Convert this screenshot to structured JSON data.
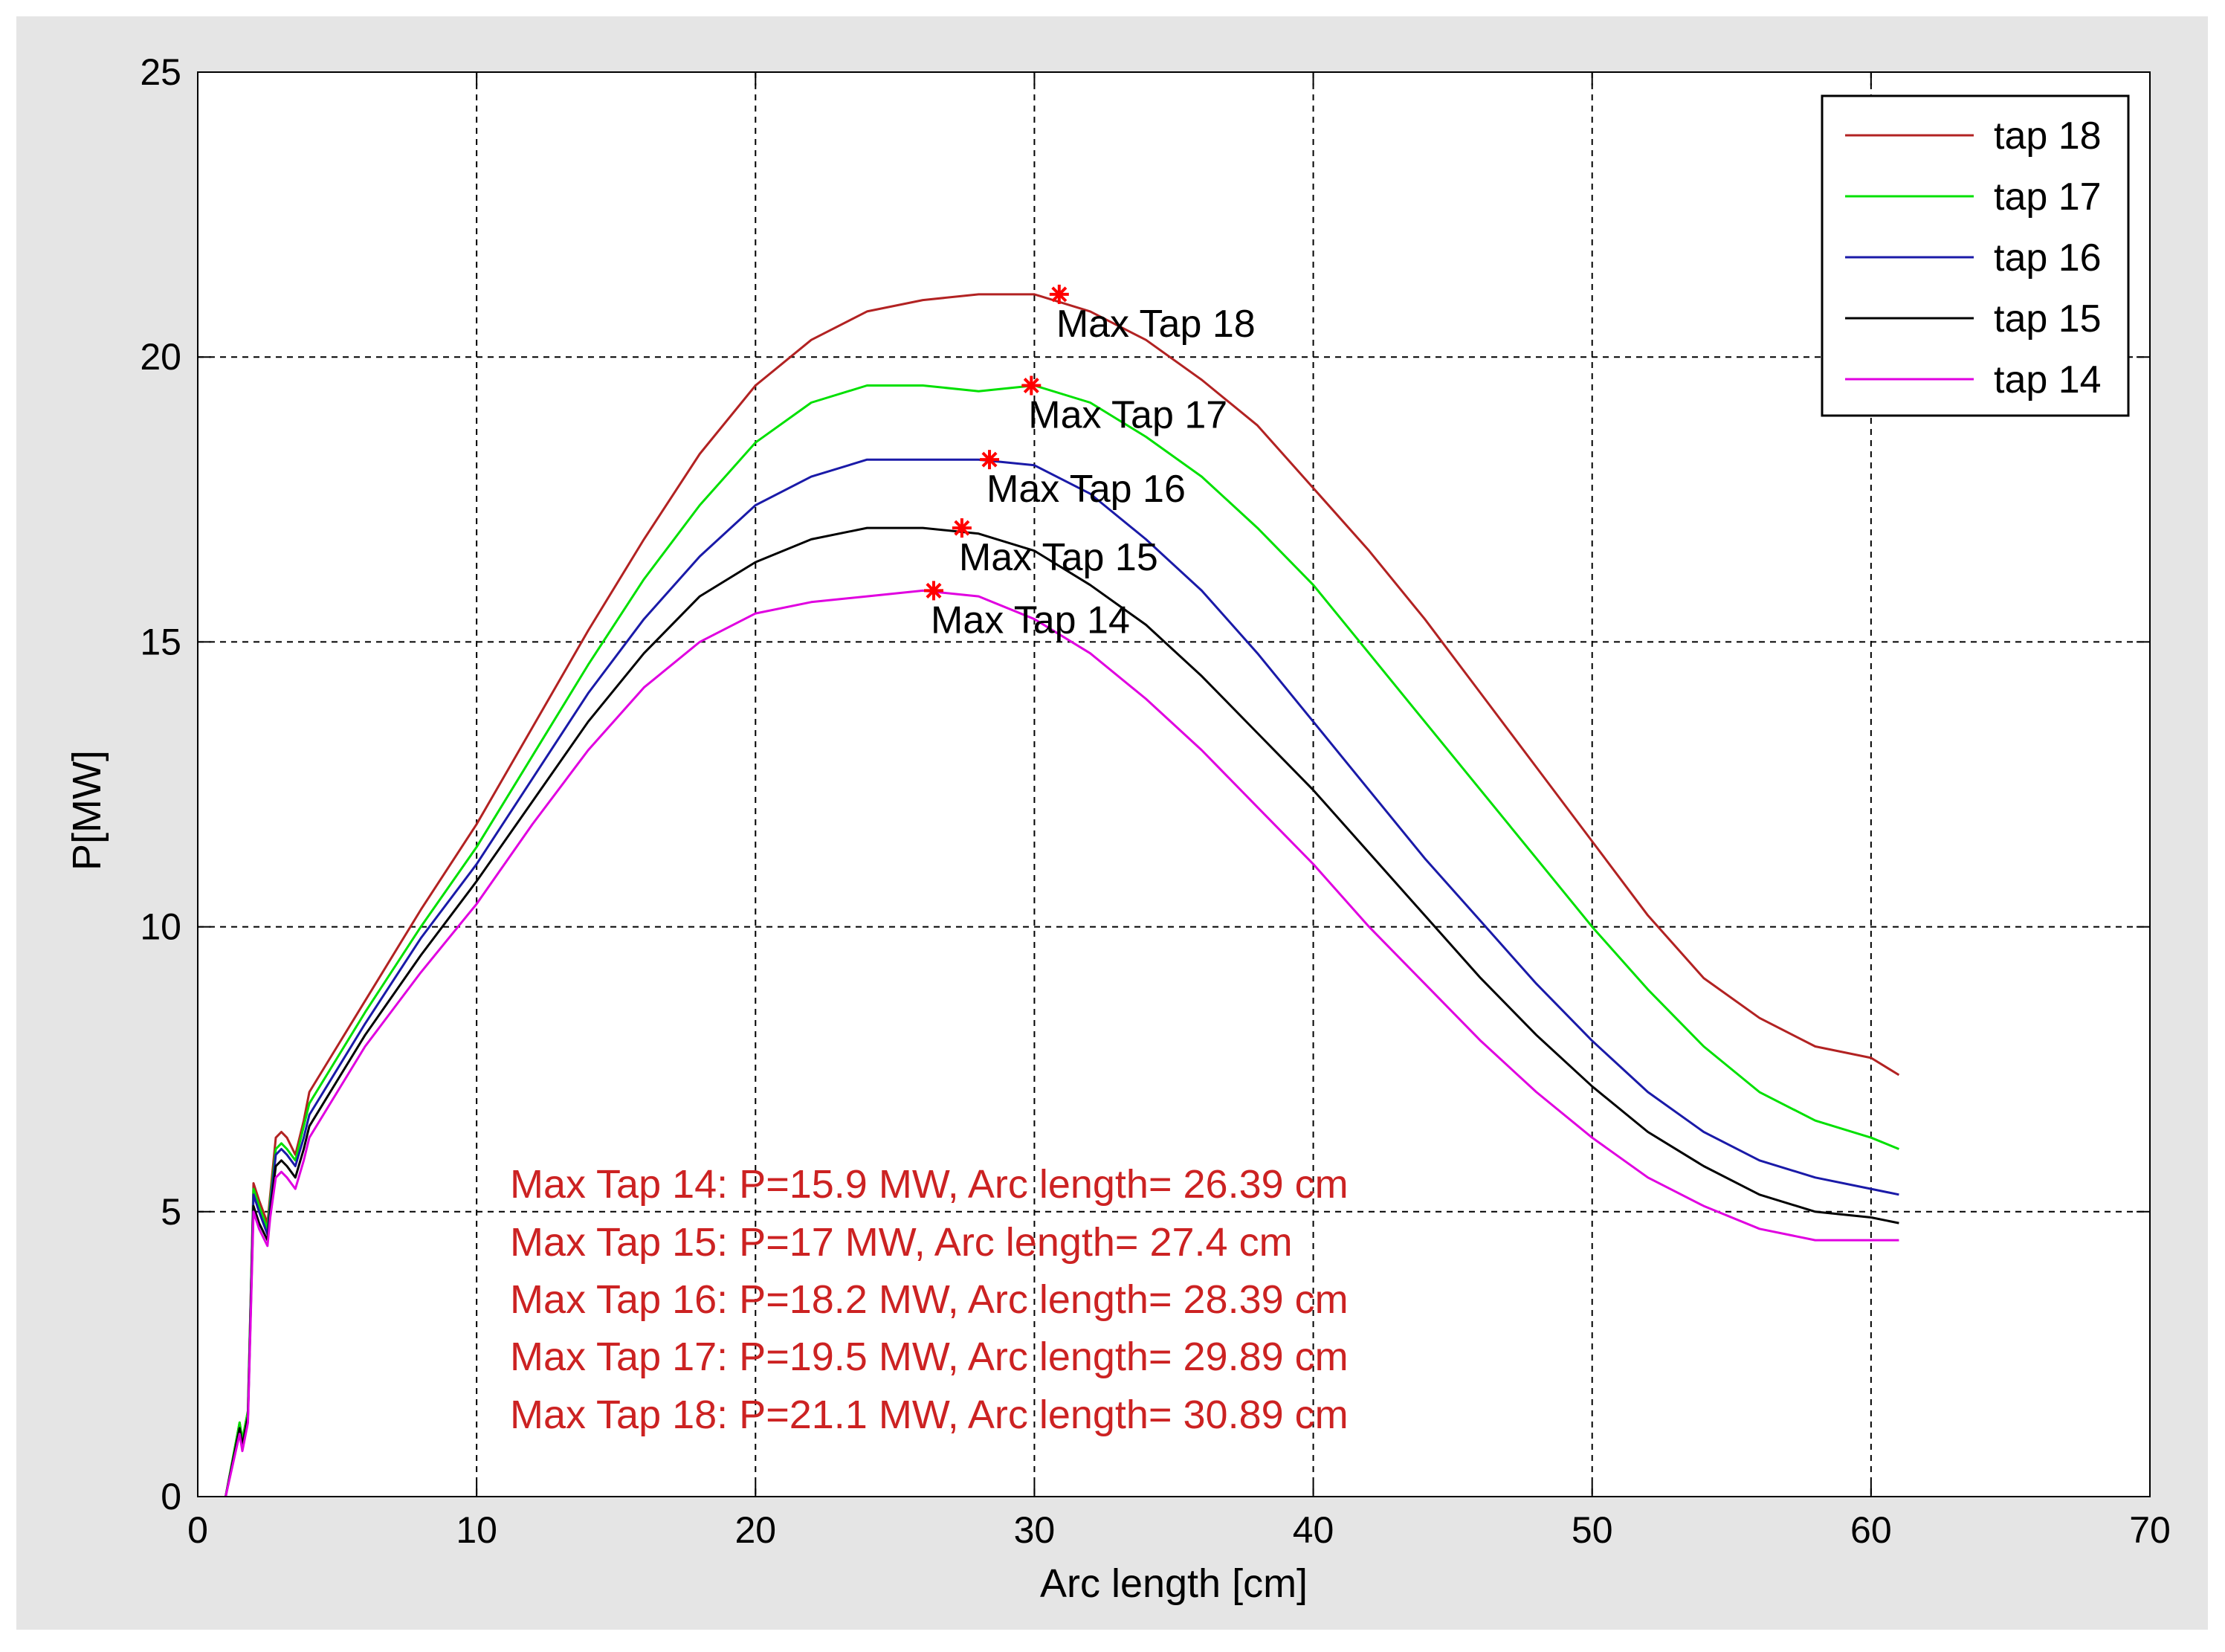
{
  "chart_data": {
    "type": "line",
    "title": "",
    "xlabel": "Arc length [cm]",
    "ylabel": "P[MW]",
    "xlim": [
      0,
      70
    ],
    "ylim": [
      0,
      25
    ],
    "xticks": [
      0,
      10,
      20,
      30,
      40,
      50,
      60,
      70
    ],
    "yticks": [
      0,
      5,
      10,
      15,
      20,
      25
    ],
    "grid": true,
    "legend_position": "top-right",
    "series": [
      {
        "name": "tap 18",
        "color": "#b22222",
        "x": [
          1,
          1.5,
          1.6,
          1.8,
          2.0,
          2.2,
          2.5,
          2.6,
          2.8,
          3.0,
          3.2,
          3.5,
          3.8,
          4,
          5,
          6,
          8,
          10,
          12,
          14,
          16,
          18,
          20,
          22,
          24,
          26,
          28,
          30,
          32,
          34,
          36,
          38,
          40,
          42,
          44,
          46,
          48,
          50,
          52,
          54,
          56,
          58,
          60,
          61
        ],
        "values": [
          0,
          1.3,
          1.0,
          1.5,
          5.5,
          5.2,
          4.8,
          5.3,
          6.3,
          6.4,
          6.3,
          6.0,
          6.6,
          7.1,
          7.9,
          8.7,
          10.3,
          11.8,
          13.5,
          15.2,
          16.8,
          18.3,
          19.5,
          20.3,
          20.8,
          21.0,
          21.1,
          21.1,
          20.8,
          20.3,
          19.6,
          18.8,
          17.7,
          16.6,
          15.4,
          14.1,
          12.8,
          11.5,
          10.2,
          9.1,
          8.4,
          7.9,
          7.7,
          7.4
        ]
      },
      {
        "name": "tap 17",
        "color": "#00e000",
        "x": [
          1,
          1.5,
          1.6,
          1.8,
          2.0,
          2.2,
          2.5,
          2.6,
          2.8,
          3.0,
          3.2,
          3.5,
          3.8,
          4,
          5,
          6,
          8,
          10,
          12,
          14,
          16,
          18,
          20,
          22,
          24,
          26,
          28,
          30,
          32,
          34,
          36,
          38,
          40,
          42,
          44,
          46,
          48,
          50,
          52,
          54,
          56,
          58,
          60,
          61
        ],
        "values": [
          0,
          1.3,
          1.0,
          1.5,
          5.4,
          5.1,
          4.7,
          5.2,
          6.1,
          6.2,
          6.1,
          5.9,
          6.5,
          6.9,
          7.7,
          8.5,
          10.0,
          11.4,
          13.0,
          14.6,
          16.1,
          17.4,
          18.5,
          19.2,
          19.5,
          19.5,
          19.4,
          19.5,
          19.2,
          18.6,
          17.9,
          17.0,
          16.0,
          14.8,
          13.6,
          12.4,
          11.2,
          10.0,
          8.9,
          7.9,
          7.1,
          6.6,
          6.3,
          6.1
        ]
      },
      {
        "name": "tap 16",
        "color": "#1a1aa8",
        "x": [
          1,
          1.5,
          1.6,
          1.8,
          2.0,
          2.2,
          2.5,
          2.6,
          2.8,
          3.0,
          3.2,
          3.5,
          3.8,
          4,
          5,
          6,
          8,
          10,
          12,
          14,
          16,
          18,
          20,
          22,
          24,
          26,
          28,
          30,
          32,
          34,
          36,
          38,
          40,
          42,
          44,
          46,
          48,
          50,
          52,
          54,
          56,
          58,
          60,
          61
        ],
        "values": [
          0,
          1.2,
          0.9,
          1.4,
          5.3,
          5.0,
          4.6,
          5.1,
          6.0,
          6.1,
          6.0,
          5.8,
          6.3,
          6.7,
          7.5,
          8.3,
          9.8,
          11.1,
          12.6,
          14.1,
          15.4,
          16.5,
          17.4,
          17.9,
          18.2,
          18.2,
          18.2,
          18.1,
          17.6,
          16.8,
          15.9,
          14.8,
          13.6,
          12.4,
          11.2,
          10.1,
          9.0,
          8.0,
          7.1,
          6.4,
          5.9,
          5.6,
          5.4,
          5.3
        ]
      },
      {
        "name": "tap 15",
        "color": "#000000",
        "x": [
          1,
          1.5,
          1.6,
          1.8,
          2.0,
          2.2,
          2.5,
          2.6,
          2.8,
          3.0,
          3.2,
          3.5,
          3.8,
          4,
          5,
          6,
          8,
          10,
          12,
          14,
          16,
          18,
          20,
          22,
          24,
          26,
          28,
          30,
          32,
          34,
          36,
          38,
          40,
          42,
          44,
          46,
          48,
          50,
          52,
          54,
          56,
          58,
          60,
          61
        ],
        "values": [
          0,
          1.2,
          0.9,
          1.4,
          5.1,
          4.8,
          4.5,
          5.0,
          5.8,
          5.9,
          5.8,
          5.6,
          6.1,
          6.5,
          7.3,
          8.1,
          9.5,
          10.8,
          12.2,
          13.6,
          14.8,
          15.8,
          16.4,
          16.8,
          17.0,
          17.0,
          16.9,
          16.6,
          16.0,
          15.3,
          14.4,
          13.4,
          12.4,
          11.3,
          10.2,
          9.1,
          8.1,
          7.2,
          6.4,
          5.8,
          5.3,
          5.0,
          4.9,
          4.8
        ]
      },
      {
        "name": "tap 14",
        "color": "#e000e0",
        "x": [
          1,
          1.5,
          1.6,
          1.8,
          2.0,
          2.2,
          2.5,
          2.6,
          2.8,
          3.0,
          3.2,
          3.5,
          3.8,
          4,
          5,
          6,
          8,
          10,
          12,
          14,
          16,
          18,
          20,
          22,
          24,
          26,
          28,
          30,
          32,
          34,
          36,
          38,
          40,
          42,
          44,
          46,
          48,
          50,
          52,
          54,
          56,
          58,
          60,
          61
        ],
        "values": [
          0,
          1.1,
          0.8,
          1.3,
          5.0,
          4.7,
          4.4,
          4.9,
          5.6,
          5.7,
          5.6,
          5.4,
          5.9,
          6.3,
          7.1,
          7.9,
          9.2,
          10.4,
          11.8,
          13.1,
          14.2,
          15.0,
          15.5,
          15.7,
          15.8,
          15.9,
          15.8,
          15.4,
          14.8,
          14.0,
          13.1,
          12.1,
          11.1,
          10.0,
          9.0,
          8.0,
          7.1,
          6.3,
          5.6,
          5.1,
          4.7,
          4.5,
          4.5,
          4.5
        ]
      }
    ],
    "markers": [
      {
        "label": "Max Tap 18",
        "x": 30.89,
        "y": 21.1
      },
      {
        "label": "Max Tap 17",
        "x": 29.89,
        "y": 19.5
      },
      {
        "label": "Max Tap 16",
        "x": 28.39,
        "y": 18.2
      },
      {
        "label": "Max Tap 15",
        "x": 27.4,
        "y": 17.0
      },
      {
        "label": "Max Tap 14",
        "x": 26.39,
        "y": 15.9
      }
    ],
    "marker_color": "#ff0000",
    "annotations_color": "#cc2222",
    "annotations": [
      "Max Tap 14: P=15.9 MW, Arc length= 26.39 cm",
      "Max Tap 15: P=17 MW, Arc length= 27.4 cm",
      "Max Tap 16: P=18.2 MW, Arc length= 28.39 cm",
      "Max Tap 17: P=19.5 MW, Arc length= 29.89 cm",
      "Max Tap 18: P=21.1 MW, Arc length= 30.89 cm"
    ]
  }
}
